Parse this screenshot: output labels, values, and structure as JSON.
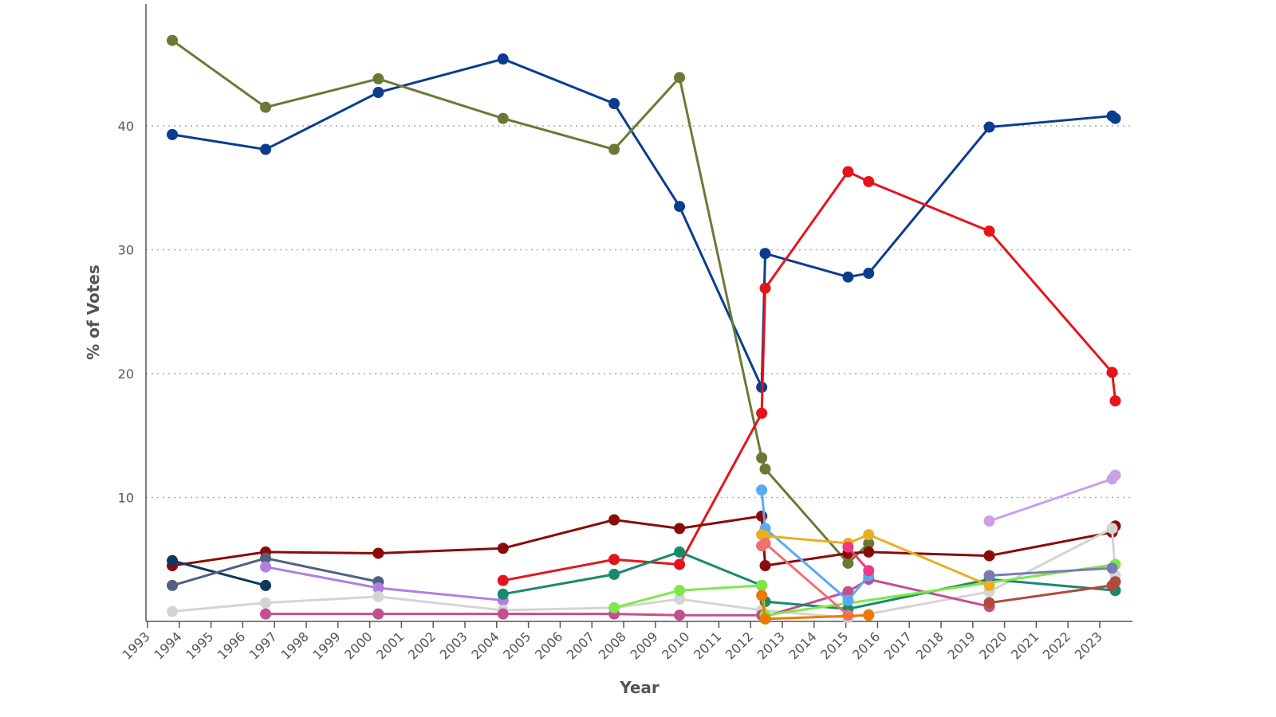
{
  "chart_data": {
    "type": "line",
    "title": "",
    "xlabel": "Year",
    "ylabel": "% of Votes",
    "xlim": [
      1993,
      2024
    ],
    "ylim": [
      0,
      50
    ],
    "x_ticks": [
      "1993",
      "1994",
      "1995",
      "1996",
      "1997",
      "1998",
      "1999",
      "2000",
      "2001",
      "2002",
      "2003",
      "2004",
      "2005",
      "2006",
      "2007",
      "2008",
      "2009",
      "2010",
      "2011",
      "2012",
      "2013",
      "2014",
      "2015",
      "2016",
      "2017",
      "2018",
      "2019",
      "2020",
      "2021",
      "2022",
      "2023"
    ],
    "y_ticks": [
      "10",
      "20",
      "30",
      "40"
    ],
    "y_tick_values": [
      10,
      20,
      30,
      40
    ],
    "grid": "horizontal dotted",
    "legend": "none",
    "x": [
      1993.78,
      1996.72,
      2000.27,
      2004.2,
      2007.7,
      2009.76,
      2012.35,
      2012.46,
      2015.07,
      2015.72,
      2019.52,
      2023.39,
      2023.49
    ],
    "series": [
      {
        "color": "#0b3d8f",
        "values": [
          39.3,
          38.1,
          42.7,
          45.4,
          41.8,
          33.5,
          18.9,
          29.7,
          27.8,
          28.1,
          39.9,
          40.8,
          40.6
        ]
      },
      {
        "color": "#6a7a36",
        "values": [
          46.9,
          41.5,
          43.8,
          40.6,
          38.1,
          43.9,
          13.2,
          12.3,
          4.7,
          6.3,
          null,
          null,
          null
        ]
      },
      {
        "color": "#e5141c",
        "values": [
          null,
          null,
          null,
          3.3,
          5.0,
          4.6,
          16.8,
          26.9,
          36.3,
          35.5,
          31.5,
          20.1,
          17.8
        ]
      },
      {
        "color": "#8b0a0a",
        "values": [
          4.5,
          5.6,
          5.5,
          5.9,
          8.2,
          7.5,
          8.5,
          4.5,
          5.5,
          5.6,
          5.3,
          7.2,
          7.7
        ]
      },
      {
        "color": "#0b3a5c",
        "values": [
          4.9,
          2.9,
          null,
          null,
          null,
          null,
          null,
          null,
          null,
          null,
          null,
          null,
          null
        ]
      },
      {
        "color": "#4f6080",
        "values": [
          2.9,
          5.1,
          3.2,
          null,
          null,
          null,
          null,
          null,
          null,
          null,
          null,
          null,
          null
        ]
      },
      {
        "color": "#b07fe0",
        "values": [
          null,
          4.4,
          2.7,
          1.7,
          null,
          null,
          null,
          null,
          null,
          null,
          null,
          null,
          null
        ]
      },
      {
        "color": "#d4d4d4",
        "values": [
          0.8,
          1.5,
          2.0,
          0.9,
          1.1,
          1.8,
          0.9,
          null,
          0.3,
          0.6,
          2.4,
          7.5,
          3.7
        ]
      },
      {
        "color": "#c2508f",
        "values": [
          null,
          0.6,
          0.6,
          0.6,
          0.6,
          0.5,
          0.5,
          0.4,
          2.4,
          3.4,
          1.2,
          null,
          null
        ]
      },
      {
        "color": "#188a6e",
        "values": [
          null,
          null,
          null,
          2.2,
          3.8,
          5.6,
          2.9,
          1.6,
          1.0,
          null,
          3.4,
          null,
          2.5
        ]
      },
      {
        "color": "#7ee84a",
        "values": [
          null,
          null,
          null,
          null,
          1.1,
          2.5,
          2.9,
          0.5,
          null,
          null,
          null,
          null,
          4.6
        ]
      },
      {
        "color": "#5aaaf0",
        "values": [
          null,
          null,
          null,
          null,
          null,
          null,
          10.6,
          7.5,
          1.7,
          3.7,
          null,
          null,
          null
        ]
      },
      {
        "color": "#e8b020",
        "values": [
          null,
          null,
          null,
          null,
          null,
          null,
          7.0,
          6.9,
          6.3,
          7.0,
          2.9,
          null,
          null
        ]
      },
      {
        "color": "#f07070",
        "values": [
          null,
          null,
          null,
          null,
          null,
          null,
          6.1,
          6.3,
          0.5,
          null,
          null,
          null,
          null
        ]
      },
      {
        "color": "#ee3a80",
        "values": [
          null,
          null,
          null,
          null,
          null,
          null,
          null,
          null,
          6.0,
          4.1,
          null,
          null,
          null
        ]
      },
      {
        "color": "#f07800",
        "values": [
          null,
          null,
          null,
          null,
          null,
          null,
          2.1,
          0.2,
          null,
          0.5,
          null,
          null,
          null
        ]
      },
      {
        "color": "#c9a0e8",
        "values": [
          null,
          null,
          null,
          null,
          null,
          null,
          null,
          null,
          null,
          null,
          8.1,
          11.5,
          11.8
        ]
      },
      {
        "color": "#7a7ab8",
        "values": [
          null,
          null,
          null,
          null,
          null,
          null,
          null,
          null,
          null,
          null,
          3.7,
          4.3,
          null
        ]
      },
      {
        "color": "#b04a3a",
        "values": [
          null,
          null,
          null,
          null,
          null,
          null,
          null,
          null,
          null,
          null,
          1.5,
          2.9,
          3.2
        ]
      }
    ]
  }
}
